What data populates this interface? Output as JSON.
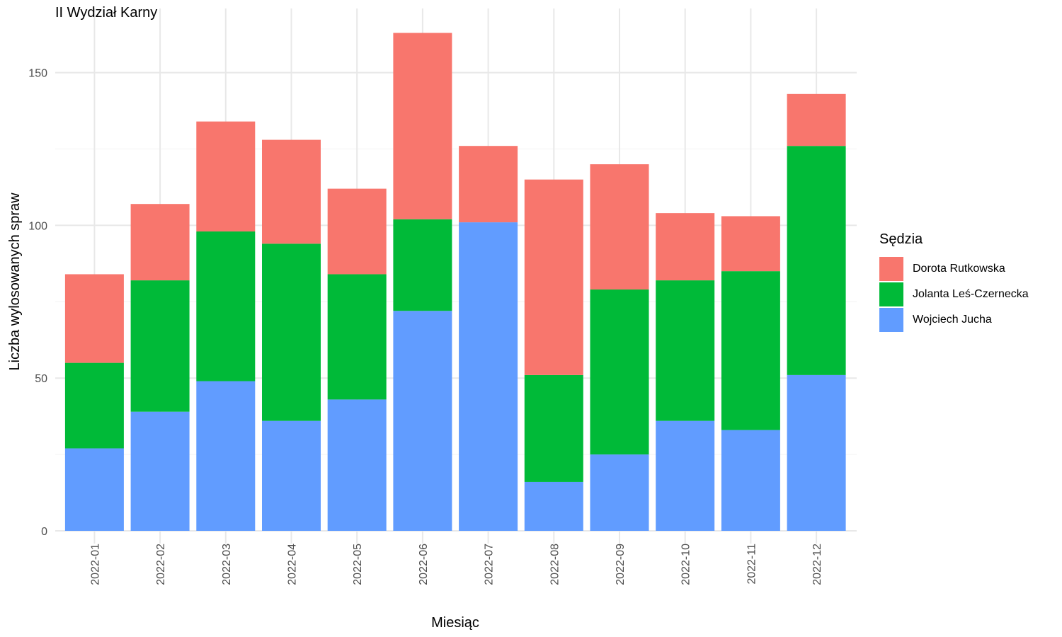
{
  "chart_data": {
    "type": "bar",
    "stacked": true,
    "title": "II Wydział Karny",
    "xlabel": "Miesiąc",
    "ylabel": "Liczba wylosowanych spraw",
    "ylim": [
      0,
      165
    ],
    "yticks": [
      0,
      50,
      100,
      150
    ],
    "grid": true,
    "legend_position": "right",
    "legend_title": "Sędzia",
    "categories": [
      "2022-01",
      "2022-02",
      "2022-03",
      "2022-04",
      "2022-05",
      "2022-06",
      "2022-07",
      "2022-08",
      "2022-09",
      "2022-10",
      "2022-11",
      "2022-12"
    ],
    "series": [
      {
        "name": "Dorota Rutkowska",
        "color": "#F8766D",
        "values": [
          29,
          25,
          36,
          34,
          28,
          61,
          25,
          64,
          41,
          22,
          18,
          17
        ]
      },
      {
        "name": "Jolanta Leś-Czernecka",
        "color": "#00BA38",
        "values": [
          28,
          43,
          49,
          58,
          41,
          30,
          0,
          35,
          54,
          46,
          52,
          75
        ]
      },
      {
        "name": "Wojciech Jucha",
        "color": "#619CFF",
        "values": [
          27,
          39,
          49,
          36,
          43,
          72,
          101,
          16,
          25,
          36,
          33,
          51
        ]
      }
    ]
  }
}
